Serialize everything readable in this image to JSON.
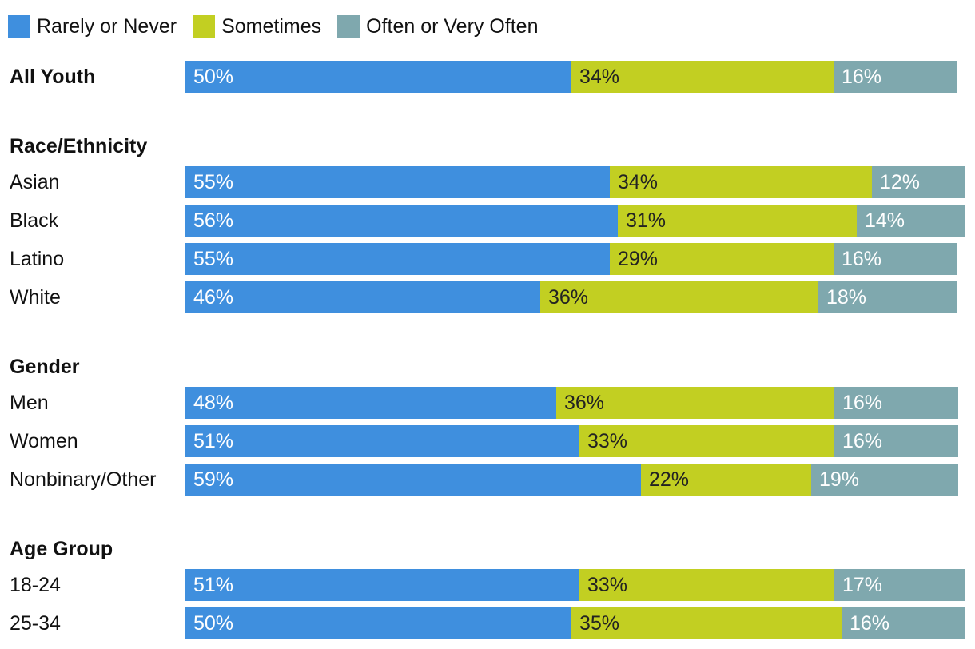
{
  "chart_data": {
    "type": "bar",
    "orientation": "horizontal-stacked",
    "title": "",
    "xlabel": "",
    "ylabel": "",
    "xlim": [
      0,
      100
    ],
    "series": [
      {
        "name": "Rarely or Never",
        "color": "#3f8fde"
      },
      {
        "name": "Sometimes",
        "color": "#c2cf22"
      },
      {
        "name": "Often or Very Often",
        "color": "#7fa8ae"
      }
    ],
    "groups": [
      {
        "label": "",
        "rows": [
          {
            "label": "All Youth",
            "bold": true,
            "values": [
              50,
              34,
              16
            ],
            "labels": [
              "50%",
              "34%",
              "16%"
            ]
          }
        ]
      },
      {
        "label": "Race/Ethnicity",
        "rows": [
          {
            "label": "Asian",
            "values": [
              55,
              34,
              12
            ],
            "labels": [
              "55%",
              "34%",
              "12%"
            ]
          },
          {
            "label": "Black",
            "values": [
              56,
              31,
              14
            ],
            "labels": [
              "56%",
              "31%",
              "14%"
            ]
          },
          {
            "label": "Latino",
            "values": [
              55,
              29,
              16
            ],
            "labels": [
              "55%",
              "29%",
              "16%"
            ]
          },
          {
            "label": "White",
            "values": [
              46,
              36,
              18
            ],
            "labels": [
              "46%",
              "36%",
              "18%"
            ]
          }
        ]
      },
      {
        "label": "Gender",
        "rows": [
          {
            "label": "Men",
            "values": [
              48,
              36,
              16
            ],
            "labels": [
              "48%",
              "36%",
              "16%"
            ]
          },
          {
            "label": "Women",
            "values": [
              51,
              33,
              16
            ],
            "labels": [
              "51%",
              "33%",
              "16%"
            ]
          },
          {
            "label": "Nonbinary/Other",
            "values": [
              59,
              22,
              19
            ],
            "labels": [
              "59%",
              "22%",
              "19%"
            ]
          }
        ]
      },
      {
        "label": "Age Group",
        "rows": [
          {
            "label": "18-24",
            "values": [
              51,
              33,
              17
            ],
            "labels": [
              "51%",
              "33%",
              "17%"
            ]
          },
          {
            "label": "25-34",
            "values": [
              50,
              35,
              16
            ],
            "labels": [
              "50%",
              "35%",
              "16%"
            ]
          }
        ]
      }
    ]
  }
}
